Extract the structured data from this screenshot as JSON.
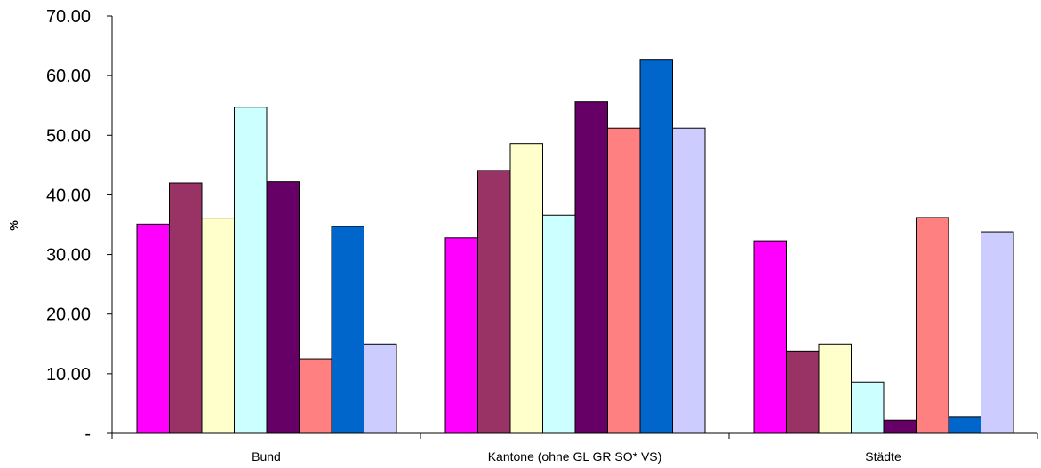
{
  "chart_data": {
    "type": "bar",
    "categories": [
      "Bund",
      "Kantone (ohne GL GR SO* VS)",
      "Städte"
    ],
    "series": [
      {
        "color": "#FF00FF",
        "values": [
          35.1,
          32.8,
          32.3
        ]
      },
      {
        "color": "#993366",
        "values": [
          42.0,
          44.1,
          13.8
        ]
      },
      {
        "color": "#FFFFCC",
        "values": [
          36.1,
          48.6,
          15.0
        ]
      },
      {
        "color": "#CCFFFF",
        "values": [
          54.7,
          36.6,
          8.6
        ]
      },
      {
        "color": "#660066",
        "values": [
          42.2,
          55.6,
          2.2
        ]
      },
      {
        "color": "#FF8080",
        "values": [
          12.5,
          51.2,
          36.2
        ]
      },
      {
        "color": "#0066CC",
        "values": [
          34.7,
          62.6,
          2.7
        ]
      },
      {
        "color": "#CCCCFF",
        "values": [
          15.0,
          51.2,
          33.8
        ]
      }
    ],
    "ylabel": "%",
    "ylim": [
      0,
      70
    ],
    "yticks": [
      "-",
      "10.00",
      "20.00",
      "30.00",
      "40.00",
      "50.00",
      "60.00",
      "70.00"
    ],
    "grid": false,
    "legend": "none"
  }
}
